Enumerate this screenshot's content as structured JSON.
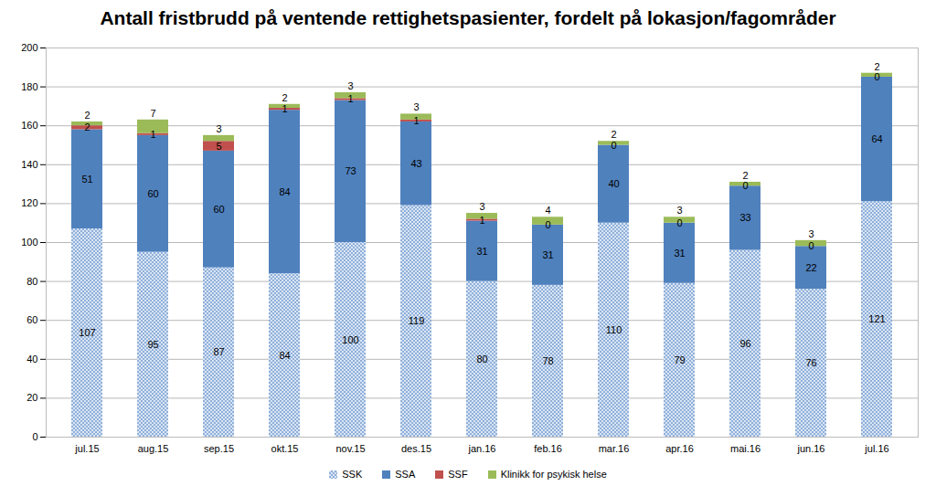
{
  "chart_data": {
    "type": "bar",
    "title": "Antall fristbrudd på ventende rettighetspasienter, fordelt på lokasjon/fagområder",
    "categories": [
      "jul.15",
      "aug.15",
      "sep.15",
      "okt.15",
      "nov.15",
      "des.15",
      "jan.16",
      "feb.16",
      "mar.16",
      "apr.16",
      "mai.16",
      "jun.16",
      "jul.16"
    ],
    "series": [
      {
        "name": "SSK",
        "color": "#8fb0db",
        "values": [
          107,
          95,
          87,
          84,
          100,
          119,
          80,
          78,
          110,
          79,
          96,
          76,
          121
        ]
      },
      {
        "name": "SSA",
        "color": "#4f81bd",
        "values": [
          51,
          60,
          60,
          84,
          73,
          43,
          31,
          31,
          40,
          31,
          33,
          22,
          64
        ]
      },
      {
        "name": "SSF",
        "color": "#c0504d",
        "values": [
          2,
          1,
          5,
          1,
          1,
          1,
          1,
          0,
          0,
          0,
          0,
          0,
          0
        ]
      },
      {
        "name": "Klinikk for psykisk helse",
        "color": "#9bbb59",
        "values": [
          2,
          7,
          3,
          2,
          3,
          3,
          3,
          4,
          2,
          3,
          2,
          3,
          2
        ]
      }
    ],
    "stacked": true,
    "data_labels": true,
    "ylim": [
      0,
      200
    ],
    "yticks": [
      0,
      20,
      40,
      60,
      80,
      100,
      120,
      140,
      160,
      180,
      200
    ],
    "grid": true,
    "legend": "bottom"
  }
}
